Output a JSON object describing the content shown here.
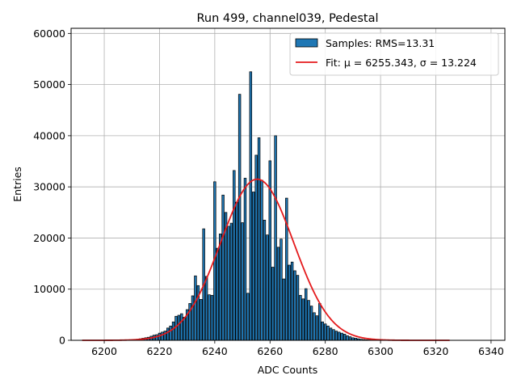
{
  "chart_data": {
    "type": "bar",
    "title": "Run 499, channel039, Pedestal",
    "xlabel": "ADC Counts",
    "ylabel": "Entries",
    "xlim": [
      6188,
      6345
    ],
    "ylim": [
      0,
      61000
    ],
    "xticks": [
      "6200",
      "6220",
      "6240",
      "6260",
      "6280",
      "6300",
      "6320",
      "6340"
    ],
    "yticks": [
      "0",
      "10000",
      "20000",
      "30000",
      "40000",
      "50000",
      "60000"
    ],
    "grid": true,
    "legend": {
      "placement": "top-right",
      "entries": [
        {
          "label": "Samples: RMS=13.31",
          "kind": "bar"
        },
        {
          "label": "Fit: μ = 6255.343, σ = 13.224",
          "kind": "line"
        }
      ]
    },
    "colors": {
      "bar_fill": "#1f77b4",
      "bar_edge": "#000000",
      "fit_line": "#e41a1c"
    },
    "bar_width": 0.8,
    "bars": {
      "x": [
        6212,
        6213,
        6214,
        6215,
        6216,
        6217,
        6218,
        6219,
        6220,
        6221,
        6222,
        6223,
        6224,
        6225,
        6226,
        6227,
        6228,
        6229,
        6230,
        6231,
        6232,
        6233,
        6234,
        6235,
        6236,
        6237,
        6238,
        6239,
        6240,
        6241,
        6242,
        6243,
        6244,
        6245,
        6246,
        6247,
        6248,
        6249,
        6250,
        6251,
        6252,
        6253,
        6254,
        6255,
        6256,
        6257,
        6258,
        6259,
        6260,
        6261,
        6262,
        6263,
        6264,
        6265,
        6266,
        6267,
        6268,
        6269,
        6270,
        6271,
        6272,
        6273,
        6274,
        6275,
        6276,
        6277,
        6278,
        6279,
        6280,
        6281,
        6282,
        6283,
        6284,
        6285,
        6286,
        6287,
        6288,
        6289,
        6290,
        6291,
        6292,
        6293,
        6294,
        6295,
        6296,
        6297,
        6298
      ],
      "values": [
        200,
        300,
        400,
        500,
        600,
        800,
        1000,
        1100,
        1400,
        1600,
        1800,
        2400,
        2800,
        3600,
        4700,
        4900,
        5200,
        4500,
        6000,
        7200,
        8700,
        12600,
        10700,
        8000,
        21800,
        12500,
        8900,
        8800,
        31000,
        18000,
        20800,
        28400,
        25000,
        22300,
        22900,
        33200,
        27000,
        48100,
        23000,
        31700,
        9200,
        52500,
        29000,
        36200,
        39600,
        31300,
        23500,
        20600,
        35100,
        14300,
        40000,
        18200,
        19800,
        12000,
        27800,
        14700,
        15300,
        13600,
        12700,
        8800,
        8100,
        10100,
        7800,
        6700,
        5400,
        4800,
        7200,
        3600,
        3200,
        2800,
        2400,
        2100,
        1800,
        1600,
        1400,
        1200,
        900,
        700,
        500,
        400,
        300,
        200,
        150,
        100,
        80,
        60,
        40
      ]
    },
    "fit": {
      "label": "Fit: μ = 6255.343, σ = 13.224",
      "mu": 6255.343,
      "sigma": 13.224,
      "amplitude": 31500,
      "x_range": [
        6192,
        6325
      ]
    }
  }
}
